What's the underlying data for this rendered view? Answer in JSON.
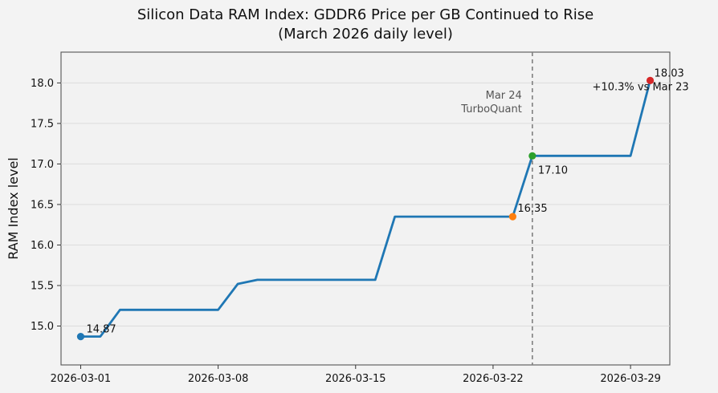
{
  "chart_data": {
    "type": "line",
    "title": "Silicon Data RAM Index: GDDR6 Price per GB Continued to Rise",
    "subtitle": "(March 2026 daily level)",
    "xlabel": "",
    "ylabel": "RAM Index level",
    "x_ticks": [
      "2026-03-01",
      "2026-03-08",
      "2026-03-15",
      "2026-03-22",
      "2026-03-29"
    ],
    "y_ticks": [
      "15.0",
      "15.5",
      "16.0",
      "16.5",
      "17.0",
      "17.5",
      "18.0"
    ],
    "ylim": [
      14.52,
      18.38
    ],
    "xlim": [
      "2026-02-28",
      "2026-03-31"
    ],
    "grid": "horizontal",
    "series": [
      {
        "color": "#1f77b4",
        "points": [
          {
            "x": "2026-03-01",
            "y": 14.87
          },
          {
            "x": "2026-03-02",
            "y": 14.87
          },
          {
            "x": "2026-03-03",
            "y": 15.2
          },
          {
            "x": "2026-03-08",
            "y": 15.2
          },
          {
            "x": "2026-03-09",
            "y": 15.52
          },
          {
            "x": "2026-03-10",
            "y": 15.57
          },
          {
            "x": "2026-03-16",
            "y": 15.57
          },
          {
            "x": "2026-03-17",
            "y": 16.35
          },
          {
            "x": "2026-03-23",
            "y": 16.35
          },
          {
            "x": "2026-03-24",
            "y": 17.1
          },
          {
            "x": "2026-03-29",
            "y": 17.1
          },
          {
            "x": "2026-03-30",
            "y": 18.03
          }
        ]
      }
    ],
    "markers": [
      {
        "x": "2026-03-01",
        "y": 14.87,
        "color": "#1f77b4",
        "label": "14.87"
      },
      {
        "x": "2026-03-23",
        "y": 16.35,
        "color": "#ff7f0e",
        "label": "16.35"
      },
      {
        "x": "2026-03-24",
        "y": 17.1,
        "color": "#2ca02c",
        "label": "17.10"
      },
      {
        "x": "2026-03-30",
        "y": 18.03,
        "color": "#d62728",
        "label": "18.03",
        "label2": "+10.3% vs Mar 23"
      }
    ],
    "event_line": {
      "x": "2026-03-24",
      "label_line1": "Mar 24",
      "label_line2": "TurboQuant"
    }
  }
}
